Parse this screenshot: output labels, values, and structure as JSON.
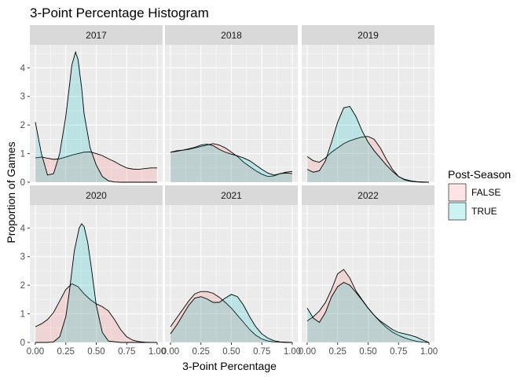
{
  "chart_data": {
    "type": "area",
    "subtype": "density",
    "title": "3-Point Percentage Histogram",
    "xlabel": "3-Point Percentage",
    "ylabel": "Proportion of Games",
    "xlim": [
      0,
      1
    ],
    "ylim": [
      0,
      4.75
    ],
    "x_ticks": [
      0,
      0.25,
      0.5,
      0.75,
      1
    ],
    "x_tick_labels": [
      "0.00",
      "0.25",
      "0.50",
      "0.75",
      "1.00"
    ],
    "y_ticks": [
      0,
      1,
      2,
      3,
      4
    ],
    "y_tick_labels": [
      "0",
      "1",
      "2",
      "3",
      "4"
    ],
    "grid": true,
    "legend": {
      "title": "Post-Season",
      "position": "right",
      "entries": [
        {
          "label": "FALSE",
          "fill": "#F8766D",
          "alpha": 0.2
        },
        {
          "label": "TRUE",
          "fill": "#00BFC4",
          "alpha": 0.2
        }
      ]
    },
    "panels": [
      {
        "label": "2017",
        "series": [
          {
            "name": "FALSE",
            "x": [
              0,
              0.05,
              0.1,
              0.15,
              0.2,
              0.25,
              0.3,
              0.35,
              0.4,
              0.45,
              0.5,
              0.55,
              0.6,
              0.65,
              0.7,
              0.75,
              0.8,
              0.85,
              0.9,
              0.95,
              1.0
            ],
            "y": [
              0.85,
              0.88,
              0.84,
              0.8,
              0.82,
              0.88,
              0.95,
              1.0,
              1.05,
              1.06,
              1.0,
              0.93,
              0.82,
              0.72,
              0.6,
              0.5,
              0.46,
              0.45,
              0.48,
              0.5,
              0.5
            ]
          },
          {
            "name": "TRUE",
            "x": [
              0,
              0.05,
              0.1,
              0.15,
              0.2,
              0.25,
              0.3,
              0.33,
              0.35,
              0.38,
              0.4,
              0.45,
              0.5,
              0.55,
              0.6,
              0.65,
              0.7,
              0.8,
              0.9,
              1.0
            ],
            "y": [
              2.1,
              1.0,
              0.25,
              0.3,
              1.0,
              2.3,
              4.1,
              4.55,
              4.3,
              3.3,
              2.4,
              1.2,
              0.6,
              0.2,
              0.05,
              0.01,
              0,
              0,
              0,
              0
            ]
          }
        ]
      },
      {
        "label": "2018",
        "series": [
          {
            "name": "FALSE",
            "x": [
              0,
              0.05,
              0.1,
              0.15,
              0.2,
              0.25,
              0.3,
              0.35,
              0.4,
              0.45,
              0.5,
              0.55,
              0.6,
              0.65,
              0.7,
              0.75,
              0.8,
              0.85,
              0.9,
              0.95,
              1.0
            ],
            "y": [
              1.05,
              1.1,
              1.12,
              1.15,
              1.2,
              1.25,
              1.3,
              1.35,
              1.3,
              1.2,
              1.05,
              0.9,
              0.7,
              0.55,
              0.4,
              0.28,
              0.2,
              0.22,
              0.3,
              0.35,
              0.38
            ]
          },
          {
            "name": "TRUE",
            "x": [
              0,
              0.05,
              0.1,
              0.15,
              0.2,
              0.25,
              0.3,
              0.35,
              0.4,
              0.45,
              0.5,
              0.55,
              0.6,
              0.65,
              0.7,
              0.75,
              0.8,
              0.85,
              0.9,
              0.95,
              1.0
            ],
            "y": [
              1.05,
              1.08,
              1.12,
              1.17,
              1.22,
              1.3,
              1.33,
              1.28,
              1.15,
              1.05,
              0.98,
              0.92,
              0.85,
              0.75,
              0.6,
              0.45,
              0.32,
              0.25,
              0.3,
              0.32,
              0.3
            ]
          }
        ]
      },
      {
        "label": "2019",
        "series": [
          {
            "name": "FALSE",
            "x": [
              0,
              0.05,
              0.1,
              0.15,
              0.2,
              0.25,
              0.3,
              0.35,
              0.4,
              0.45,
              0.5,
              0.55,
              0.6,
              0.65,
              0.7,
              0.75,
              0.8,
              0.85,
              0.9,
              0.95,
              1.0
            ],
            "y": [
              0.9,
              0.75,
              0.7,
              0.85,
              1.05,
              1.2,
              1.35,
              1.45,
              1.52,
              1.58,
              1.6,
              1.5,
              1.2,
              0.8,
              0.45,
              0.2,
              0.08,
              0.03,
              0.01,
              0,
              0
            ]
          },
          {
            "name": "TRUE",
            "x": [
              0,
              0.05,
              0.1,
              0.15,
              0.2,
              0.25,
              0.3,
              0.35,
              0.4,
              0.45,
              0.5,
              0.55,
              0.6,
              0.65,
              0.7,
              0.75,
              0.8,
              0.85,
              0.9,
              0.95,
              1.0
            ],
            "y": [
              0.45,
              0.35,
              0.4,
              0.75,
              1.4,
              2.1,
              2.6,
              2.65,
              2.3,
              1.8,
              1.4,
              1.1,
              0.85,
              0.6,
              0.38,
              0.2,
              0.1,
              0.05,
              0.02,
              0.01,
              0
            ]
          }
        ]
      },
      {
        "label": "2020",
        "series": [
          {
            "name": "FALSE",
            "x": [
              0,
              0.05,
              0.1,
              0.15,
              0.2,
              0.25,
              0.3,
              0.35,
              0.4,
              0.45,
              0.5,
              0.55,
              0.6,
              0.65,
              0.7,
              0.75,
              0.8,
              0.85,
              0.9,
              0.95,
              1.0
            ],
            "y": [
              0.55,
              0.65,
              0.8,
              1.05,
              1.45,
              1.85,
              2.05,
              1.95,
              1.7,
              1.5,
              1.35,
              1.25,
              1.1,
              0.8,
              0.45,
              0.2,
              0.08,
              0.03,
              0.01,
              0,
              0
            ]
          },
          {
            "name": "TRUE",
            "x": [
              0,
              0.1,
              0.15,
              0.2,
              0.25,
              0.28,
              0.32,
              0.36,
              0.38,
              0.4,
              0.43,
              0.46,
              0.5,
              0.55,
              0.6,
              0.7,
              0.8,
              0.9,
              1.0
            ],
            "y": [
              0,
              0,
              0.02,
              0.2,
              0.9,
              1.8,
              3.2,
              4.0,
              4.15,
              4.05,
              3.5,
              2.6,
              1.3,
              0.35,
              0.05,
              0,
              0,
              0,
              0
            ]
          }
        ]
      },
      {
        "label": "2021",
        "series": [
          {
            "name": "FALSE",
            "x": [
              0,
              0.05,
              0.1,
              0.15,
              0.2,
              0.25,
              0.3,
              0.35,
              0.4,
              0.45,
              0.5,
              0.55,
              0.6,
              0.65,
              0.7,
              0.75,
              0.8,
              0.85,
              0.9,
              0.95,
              1.0
            ],
            "y": [
              0.55,
              0.85,
              1.15,
              1.45,
              1.7,
              1.78,
              1.78,
              1.72,
              1.58,
              1.4,
              1.2,
              0.95,
              0.7,
              0.45,
              0.25,
              0.12,
              0.05,
              0.02,
              0.01,
              0,
              0
            ]
          },
          {
            "name": "TRUE",
            "x": [
              0,
              0.05,
              0.1,
              0.15,
              0.2,
              0.25,
              0.3,
              0.35,
              0.4,
              0.45,
              0.5,
              0.55,
              0.6,
              0.65,
              0.7,
              0.75,
              0.8,
              0.85,
              0.9,
              0.95,
              1.0
            ],
            "y": [
              0.3,
              0.6,
              0.95,
              1.3,
              1.55,
              1.6,
              1.52,
              1.4,
              1.4,
              1.55,
              1.68,
              1.6,
              1.3,
              0.9,
              0.55,
              0.3,
              0.15,
              0.06,
              0.02,
              0.01,
              0
            ]
          }
        ]
      },
      {
        "label": "2022",
        "series": [
          {
            "name": "FALSE",
            "x": [
              0,
              0.05,
              0.1,
              0.15,
              0.2,
              0.25,
              0.3,
              0.35,
              0.4,
              0.45,
              0.5,
              0.55,
              0.6,
              0.65,
              0.7,
              0.75,
              0.8,
              0.85,
              0.9,
              0.95,
              1.0
            ],
            "y": [
              0.75,
              0.9,
              1.1,
              1.4,
              1.85,
              2.4,
              2.55,
              2.25,
              1.8,
              1.5,
              1.2,
              0.95,
              0.72,
              0.52,
              0.36,
              0.25,
              0.16,
              0.09,
              0.04,
              0.01,
              0
            ]
          },
          {
            "name": "TRUE",
            "x": [
              0,
              0.05,
              0.1,
              0.15,
              0.2,
              0.25,
              0.3,
              0.35,
              0.4,
              0.45,
              0.5,
              0.55,
              0.6,
              0.65,
              0.7,
              0.75,
              0.8,
              0.85,
              0.9,
              0.95,
              1.0
            ],
            "y": [
              1.2,
              0.85,
              0.7,
              1.05,
              1.6,
              1.95,
              2.1,
              2.0,
              1.75,
              1.48,
              1.2,
              0.95,
              0.75,
              0.6,
              0.45,
              0.35,
              0.3,
              0.25,
              0.18,
              0.08,
              0
            ]
          }
        ]
      }
    ]
  }
}
